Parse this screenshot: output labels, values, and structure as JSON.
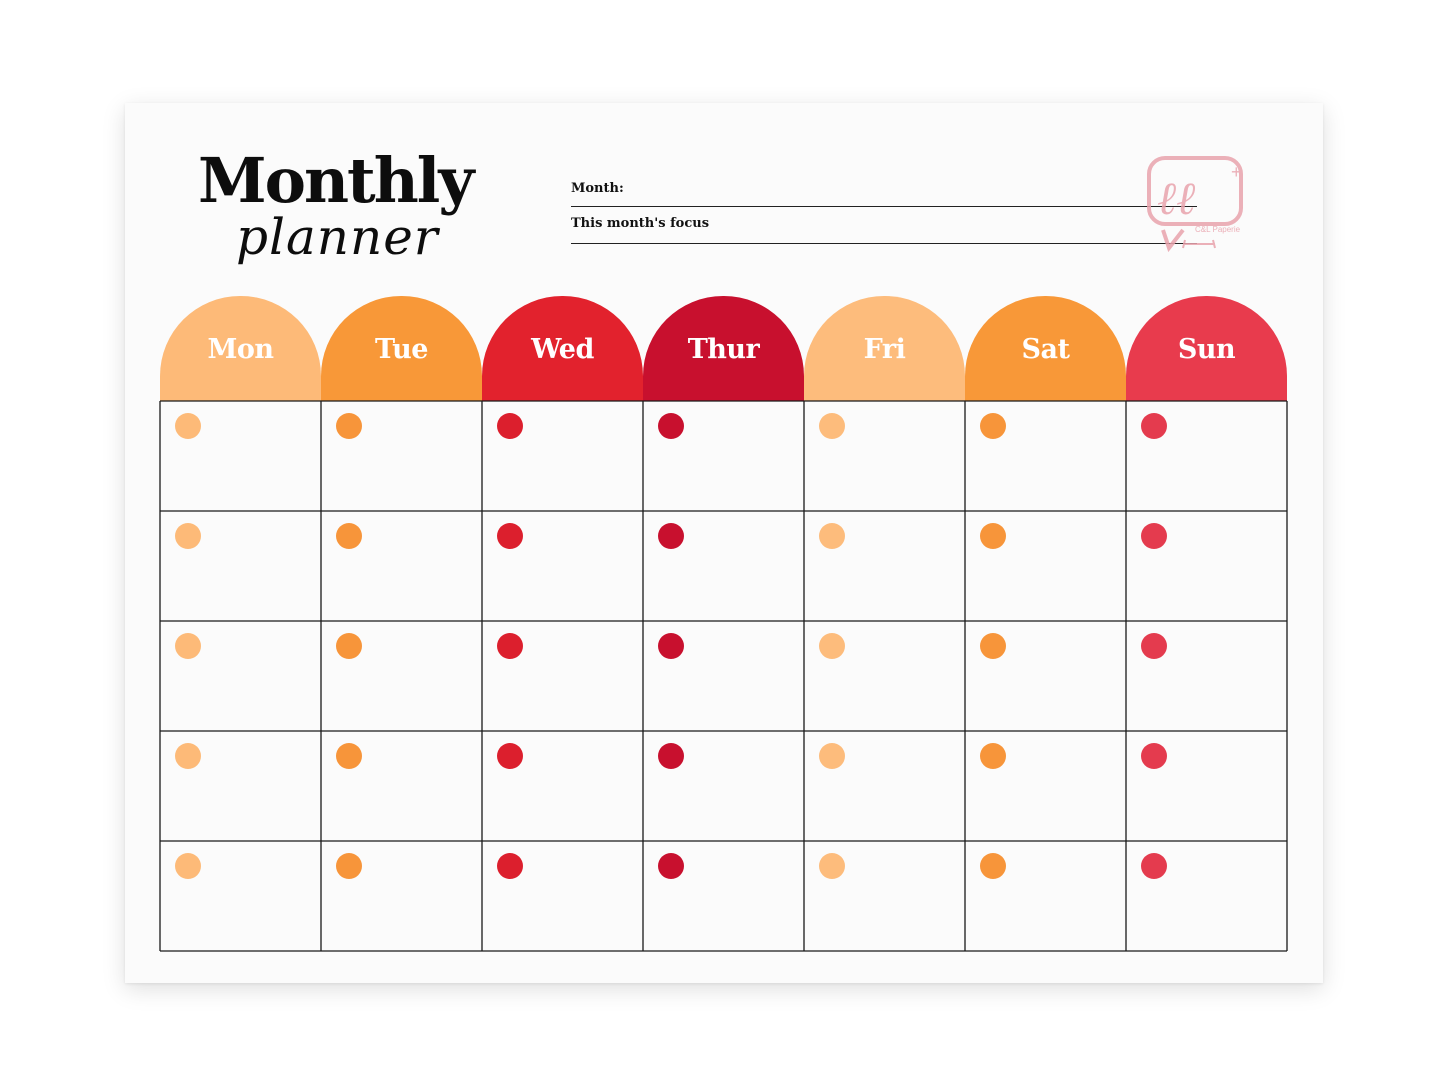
{
  "title": {
    "main": "Monthly",
    "script": "planner"
  },
  "fields": {
    "month_label": "Month:",
    "focus_label": "This month's focus"
  },
  "watermark": {
    "text": "C&L Paperie",
    "color": "#e9a3ad"
  },
  "days": [
    {
      "label": "Mon",
      "color": "#fdba78",
      "dot": "#fdba78"
    },
    {
      "label": "Tue",
      "color": "#f89838",
      "dot": "#f7953a"
    },
    {
      "label": "Wed",
      "color": "#e2222d",
      "dot": "#dc1f2d"
    },
    {
      "label": "Thur",
      "color": "#c8102e",
      "dot": "#c8102e"
    },
    {
      "label": "Fri",
      "color": "#fdbc7c",
      "dot": "#fdbc7c"
    },
    {
      "label": "Sat",
      "color": "#f89838",
      "dot": "#f7953a"
    },
    {
      "label": "Sun",
      "color": "#e83b4d",
      "dot": "#e43b4e"
    }
  ],
  "grid": {
    "rows": 5,
    "columns": 7
  }
}
